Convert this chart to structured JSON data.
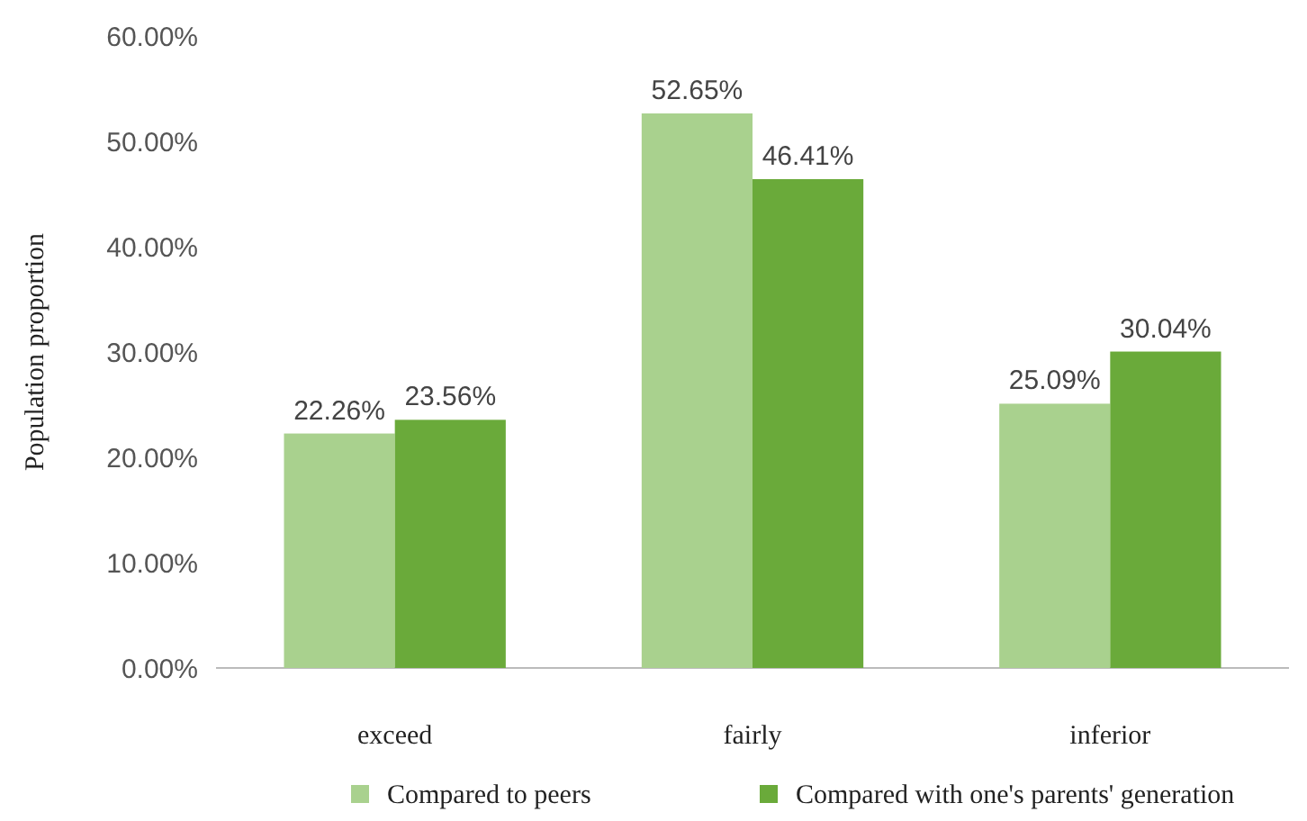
{
  "chart_data": {
    "type": "bar",
    "ylabel": "Population proportion",
    "categories": [
      "exceed",
      "fairly",
      "inferior"
    ],
    "series": [
      {
        "name": "Compared to peers",
        "color": "#a9d18e",
        "values": [
          22.26,
          52.65,
          25.09
        ],
        "value_labels": [
          "22.26%",
          "52.65%",
          "25.09%"
        ]
      },
      {
        "name": "Compared with one's parents' generation",
        "color": "#6aaa3a",
        "values": [
          23.56,
          46.41,
          30.04
        ],
        "value_labels": [
          "23.56%",
          "46.41%",
          "30.04%"
        ]
      }
    ],
    "ylim": [
      0,
      60
    ],
    "yticks": [
      {
        "value": 0,
        "label": "0.00%"
      },
      {
        "value": 10,
        "label": "10.00%"
      },
      {
        "value": 20,
        "label": "20.00%"
      },
      {
        "value": 30,
        "label": "30.00%"
      },
      {
        "value": 40,
        "label": "40.00%"
      },
      {
        "value": 50,
        "label": "50.00%"
      },
      {
        "value": 60,
        "label": "60.00%"
      }
    ],
    "grid": false,
    "legend": "bottom"
  }
}
